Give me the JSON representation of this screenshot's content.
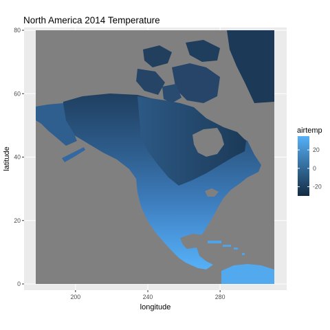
{
  "chart_data": {
    "type": "heatmap",
    "title": "North America 2014 Temperature",
    "xlabel": "longitude",
    "ylabel": "latitude",
    "x_ticks": [
      200,
      240,
      280
    ],
    "y_ticks": [
      0,
      20,
      40,
      60,
      80
    ],
    "xlim": [
      178,
      310
    ],
    "ylim": [
      0,
      80
    ],
    "grid": true,
    "legend": {
      "title": "airtemp",
      "position": "right",
      "ticks": [
        20,
        0,
        -20
      ],
      "range": [
        -30,
        35
      ],
      "low_color": "#132B43",
      "high_color": "#56B1F7"
    },
    "missing_color": "#808080",
    "panel_background": "#ebebeb",
    "grid_color": "#ffffff"
  }
}
